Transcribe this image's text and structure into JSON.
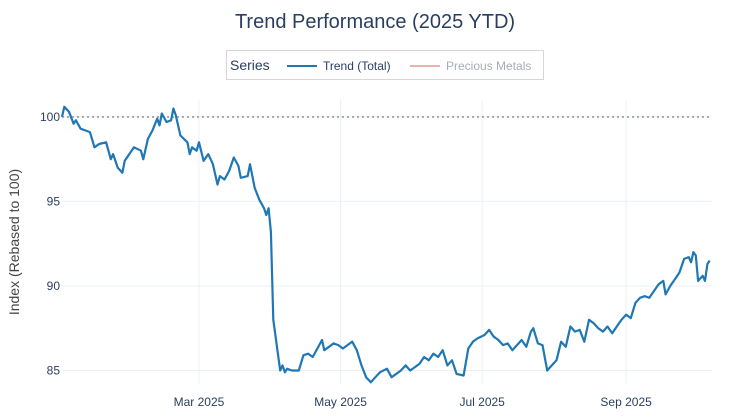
{
  "chart_data": {
    "type": "line",
    "title": "Trend Performance (2025 YTD)",
    "xlabel": "",
    "ylabel": "Index (Rebased to 100)",
    "ylim": [
      84.2,
      101.0
    ],
    "xlim": [
      "2025-01-01",
      "2025-10-08"
    ],
    "yticks": [
      85,
      90,
      95,
      100
    ],
    "xticks": [
      {
        "date": "2025-03-01",
        "label": "Mar 2025"
      },
      {
        "date": "2025-05-01",
        "label": "May 2025"
      },
      {
        "date": "2025-07-01",
        "label": "Jul 2025"
      },
      {
        "date": "2025-09-01",
        "label": "Sep 2025"
      }
    ],
    "reference_line": {
      "y": 100,
      "style": "dotted"
    },
    "grid": true,
    "legend": {
      "title": "Series",
      "position": "top-center",
      "entries": [
        {
          "name": "Trend (Total)",
          "color": "#1f77b4",
          "dimmed": false
        },
        {
          "name": "Precious Metals",
          "color": "#e8b4b0",
          "dimmed": true
        }
      ]
    },
    "series": [
      {
        "name": "Trend (Total)",
        "color": "#1f77b4",
        "points": [
          [
            "2025-01-01",
            100.0
          ],
          [
            "2025-01-02",
            100.6
          ],
          [
            "2025-01-04",
            100.3
          ],
          [
            "2025-01-06",
            99.6
          ],
          [
            "2025-01-07",
            99.8
          ],
          [
            "2025-01-09",
            99.3
          ],
          [
            "2025-01-11",
            99.2
          ],
          [
            "2025-01-13",
            99.1
          ],
          [
            "2025-01-15",
            98.2
          ],
          [
            "2025-01-17",
            98.4
          ],
          [
            "2025-01-20",
            98.5
          ],
          [
            "2025-01-22",
            97.5
          ],
          [
            "2025-01-23",
            97.8
          ],
          [
            "2025-01-25",
            97.0
          ],
          [
            "2025-01-27",
            96.7
          ],
          [
            "2025-01-28",
            97.4
          ],
          [
            "2025-01-30",
            97.8
          ],
          [
            "2025-02-01",
            98.2
          ],
          [
            "2025-02-04",
            98.0
          ],
          [
            "2025-02-05",
            97.5
          ],
          [
            "2025-02-07",
            98.7
          ],
          [
            "2025-02-09",
            99.2
          ],
          [
            "2025-02-11",
            99.9
          ],
          [
            "2025-02-12",
            99.5
          ],
          [
            "2025-02-13",
            100.2
          ],
          [
            "2025-02-15",
            99.7
          ],
          [
            "2025-02-17",
            99.8
          ],
          [
            "2025-02-18",
            100.5
          ],
          [
            "2025-02-19",
            100.1
          ],
          [
            "2025-02-21",
            98.9
          ],
          [
            "2025-02-24",
            98.5
          ],
          [
            "2025-02-25",
            97.8
          ],
          [
            "2025-02-26",
            98.2
          ],
          [
            "2025-02-28",
            98.0
          ],
          [
            "2025-03-01",
            98.5
          ],
          [
            "2025-03-03",
            97.4
          ],
          [
            "2025-03-05",
            97.8
          ],
          [
            "2025-03-07",
            97.2
          ],
          [
            "2025-03-09",
            96.0
          ],
          [
            "2025-03-10",
            96.5
          ],
          [
            "2025-03-12",
            96.3
          ],
          [
            "2025-03-14",
            96.8
          ],
          [
            "2025-03-16",
            97.6
          ],
          [
            "2025-03-18",
            97.1
          ],
          [
            "2025-03-19",
            96.4
          ],
          [
            "2025-03-22",
            96.5
          ],
          [
            "2025-03-23",
            97.2
          ],
          [
            "2025-03-25",
            95.8
          ],
          [
            "2025-03-27",
            95.1
          ],
          [
            "2025-03-29",
            94.6
          ],
          [
            "2025-03-30",
            94.2
          ],
          [
            "2025-03-31",
            94.6
          ],
          [
            "2025-04-01",
            93.2
          ],
          [
            "2025-04-02",
            88.0
          ],
          [
            "2025-04-03",
            87.0
          ],
          [
            "2025-04-04",
            86.0
          ],
          [
            "2025-04-05",
            85.0
          ],
          [
            "2025-04-06",
            85.3
          ],
          [
            "2025-04-07",
            84.9
          ],
          [
            "2025-04-08",
            85.1
          ],
          [
            "2025-04-10",
            85.0
          ],
          [
            "2025-04-13",
            85.0
          ],
          [
            "2025-04-15",
            85.9
          ],
          [
            "2025-04-17",
            86.0
          ],
          [
            "2025-04-19",
            85.8
          ],
          [
            "2025-04-21",
            86.3
          ],
          [
            "2025-04-23",
            86.8
          ],
          [
            "2025-04-24",
            86.2
          ],
          [
            "2025-04-26",
            86.4
          ],
          [
            "2025-04-28",
            86.6
          ],
          [
            "2025-04-30",
            86.5
          ],
          [
            "2025-05-02",
            86.3
          ],
          [
            "2025-05-04",
            86.5
          ],
          [
            "2025-05-06",
            86.7
          ],
          [
            "2025-05-08",
            86.2
          ],
          [
            "2025-05-10",
            85.3
          ],
          [
            "2025-05-12",
            84.6
          ],
          [
            "2025-05-14",
            84.3
          ],
          [
            "2025-05-16",
            84.6
          ],
          [
            "2025-05-18",
            84.9
          ],
          [
            "2025-05-21",
            85.1
          ],
          [
            "2025-05-23",
            84.6
          ],
          [
            "2025-05-25",
            84.8
          ],
          [
            "2025-05-27",
            85.0
          ],
          [
            "2025-05-29",
            85.3
          ],
          [
            "2025-05-31",
            85.0
          ],
          [
            "2025-06-02",
            85.2
          ],
          [
            "2025-06-04",
            85.4
          ],
          [
            "2025-06-06",
            85.8
          ],
          [
            "2025-06-08",
            85.6
          ],
          [
            "2025-06-10",
            86.0
          ],
          [
            "2025-06-12",
            85.8
          ],
          [
            "2025-06-14",
            86.2
          ],
          [
            "2025-06-16",
            85.3
          ],
          [
            "2025-06-18",
            85.6
          ],
          [
            "2025-06-20",
            84.8
          ],
          [
            "2025-06-23",
            84.7
          ],
          [
            "2025-06-25",
            86.3
          ],
          [
            "2025-06-27",
            86.7
          ],
          [
            "2025-06-29",
            86.9
          ],
          [
            "2025-07-02",
            87.1
          ],
          [
            "2025-07-04",
            87.4
          ],
          [
            "2025-07-06",
            87.0
          ],
          [
            "2025-07-08",
            86.8
          ],
          [
            "2025-07-10",
            86.5
          ],
          [
            "2025-07-12",
            86.6
          ],
          [
            "2025-07-14",
            86.2
          ],
          [
            "2025-07-16",
            86.5
          ],
          [
            "2025-07-18",
            86.8
          ],
          [
            "2025-07-20",
            86.4
          ],
          [
            "2025-07-22",
            87.3
          ],
          [
            "2025-07-23",
            87.5
          ],
          [
            "2025-07-25",
            86.6
          ],
          [
            "2025-07-27",
            86.5
          ],
          [
            "2025-07-29",
            85.0
          ],
          [
            "2025-07-31",
            85.3
          ],
          [
            "2025-08-02",
            85.6
          ],
          [
            "2025-08-04",
            86.7
          ],
          [
            "2025-08-06",
            86.4
          ],
          [
            "2025-08-08",
            87.6
          ],
          [
            "2025-08-10",
            87.3
          ],
          [
            "2025-08-12",
            87.4
          ],
          [
            "2025-08-14",
            86.7
          ],
          [
            "2025-08-16",
            88.0
          ],
          [
            "2025-08-18",
            87.8
          ],
          [
            "2025-08-20",
            87.5
          ],
          [
            "2025-08-22",
            87.3
          ],
          [
            "2025-08-24",
            87.6
          ],
          [
            "2025-08-26",
            87.2
          ],
          [
            "2025-08-28",
            87.6
          ],
          [
            "2025-08-30",
            88.0
          ],
          [
            "2025-09-01",
            88.3
          ],
          [
            "2025-09-03",
            88.1
          ],
          [
            "2025-09-05",
            89.0
          ],
          [
            "2025-09-07",
            89.3
          ],
          [
            "2025-09-09",
            89.4
          ],
          [
            "2025-09-11",
            89.3
          ],
          [
            "2025-09-13",
            89.7
          ],
          [
            "2025-09-15",
            90.1
          ],
          [
            "2025-09-17",
            90.3
          ],
          [
            "2025-09-18",
            89.5
          ],
          [
            "2025-09-20",
            90.0
          ],
          [
            "2025-09-22",
            90.4
          ],
          [
            "2025-09-24",
            90.8
          ],
          [
            "2025-09-26",
            91.6
          ],
          [
            "2025-09-28",
            91.7
          ],
          [
            "2025-09-29",
            91.4
          ],
          [
            "2025-09-30",
            92.0
          ],
          [
            "2025-10-01",
            91.8
          ],
          [
            "2025-10-02",
            90.3
          ],
          [
            "2025-10-04",
            90.6
          ],
          [
            "2025-10-05",
            90.3
          ],
          [
            "2025-10-06",
            91.3
          ],
          [
            "2025-10-07",
            91.5
          ]
        ]
      }
    ]
  }
}
